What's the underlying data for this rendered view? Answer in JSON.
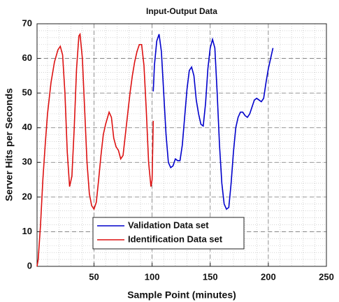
{
  "chart_data": {
    "type": "line",
    "title": "Input-Output Data",
    "xlabel": "Sample Point (minutes)",
    "ylabel": "Server Hits per Seconds",
    "xlim": [
      1,
      250
    ],
    "xticks": [
      50,
      100,
      150,
      200,
      250
    ],
    "ylim": [
      0,
      70
    ],
    "yticks": [
      0,
      10,
      20,
      30,
      40,
      50,
      60,
      70
    ],
    "grid": true,
    "minor_grid": true,
    "legend": "bottom-center",
    "series": [
      {
        "name": "Validation Data set",
        "color": "#0000cc",
        "x": [
          101,
          102,
          104,
          106,
          108,
          110,
          112,
          114,
          116,
          118,
          120,
          122,
          124,
          126,
          128,
          130,
          132,
          134,
          136,
          138,
          140,
          142,
          144,
          146,
          148,
          150,
          152,
          154,
          156,
          158,
          160,
          162,
          164,
          166,
          168,
          170,
          172,
          174,
          176,
          178,
          180,
          182,
          184,
          186,
          188,
          190,
          192,
          194,
          196,
          198,
          200,
          202,
          204
        ],
        "values": [
          50.5,
          58,
          65,
          67,
          62,
          50,
          38,
          30,
          28.5,
          29,
          31,
          30.5,
          30.5,
          35,
          43,
          51,
          56.5,
          57.5,
          55,
          48,
          44,
          41,
          40.5,
          47,
          57,
          63,
          65.5,
          63,
          50,
          35,
          24,
          18,
          16.5,
          17,
          24,
          33,
          40,
          43,
          44.5,
          44.5,
          43.5,
          43,
          44,
          46,
          48,
          48.5,
          48,
          47.5,
          48.5,
          53,
          57,
          60,
          63
        ]
      },
      {
        "name": "Identification Data set",
        "color": "#dd1111",
        "x": [
          1,
          2,
          4,
          6,
          8,
          10,
          13,
          16,
          19,
          21,
          23,
          25,
          27,
          29,
          31,
          33,
          35,
          37,
          38,
          40,
          42,
          44,
          46,
          48,
          50,
          52,
          54,
          56,
          58,
          60,
          63,
          65,
          67,
          69,
          71,
          73,
          75,
          77,
          79,
          81,
          83,
          85,
          87,
          89,
          91,
          93,
          95,
          97,
          99,
          100,
          101
        ],
        "values": [
          0,
          2,
          12,
          25,
          35,
          44,
          53,
          59,
          62.5,
          63.5,
          61,
          50,
          33,
          23,
          26,
          40,
          57,
          66.5,
          67,
          60,
          45,
          30,
          21,
          17.5,
          16.5,
          18.5,
          25,
          32,
          38,
          41,
          44.5,
          43,
          37,
          34.5,
          33.5,
          31,
          32,
          38,
          44,
          50,
          55,
          59,
          62,
          64,
          64,
          58,
          45,
          30,
          23,
          25,
          42
        ]
      }
    ]
  }
}
